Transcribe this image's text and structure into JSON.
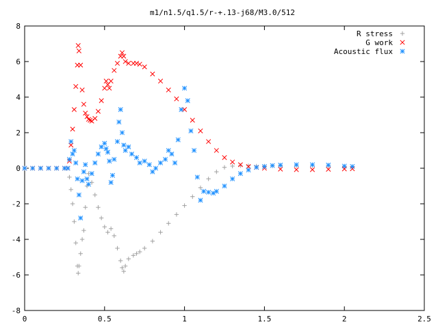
{
  "chart_data": {
    "type": "scatter",
    "title": "m1/n1.5/q1.5/r-+.13-j68/M3.0/512",
    "xlabel": "",
    "ylabel": "",
    "xlim": [
      0,
      2.5
    ],
    "ylim": [
      -8,
      8
    ],
    "x_ticks": [
      0,
      0.5,
      1,
      1.5,
      2,
      2.5
    ],
    "x_tick_labels": [
      "0",
      "0.5",
      "1",
      "1.5",
      "2",
      "2.5"
    ],
    "y_ticks": [
      -8,
      -6,
      -4,
      -2,
      0,
      2,
      4,
      6,
      8
    ],
    "y_tick_labels": [
      "-8",
      "-6",
      "-4",
      "-2",
      "0",
      "2",
      "4",
      "6",
      "8"
    ],
    "grid": false,
    "legend_position": "top-right",
    "series": [
      {
        "name": "R stress",
        "marker": "plus",
        "color": "#a0a0a0",
        "points": [
          [
            0.0,
            0.0
          ],
          [
            0.05,
            0.0
          ],
          [
            0.1,
            0.0
          ],
          [
            0.15,
            0.0
          ],
          [
            0.2,
            0.0
          ],
          [
            0.25,
            0.0
          ],
          [
            0.27,
            0.0
          ],
          [
            0.28,
            -0.5
          ],
          [
            0.29,
            -1.2
          ],
          [
            0.3,
            -2.0
          ],
          [
            0.31,
            -3.0
          ],
          [
            0.32,
            -4.2
          ],
          [
            0.33,
            -5.5
          ],
          [
            0.335,
            -5.9
          ],
          [
            0.34,
            -5.5
          ],
          [
            0.35,
            -4.8
          ],
          [
            0.36,
            -4.0
          ],
          [
            0.37,
            -3.5
          ],
          [
            0.38,
            -2.2
          ],
          [
            0.39,
            -1.0
          ],
          [
            0.4,
            -0.3
          ],
          [
            0.42,
            -0.8
          ],
          [
            0.44,
            -1.5
          ],
          [
            0.46,
            -2.2
          ],
          [
            0.48,
            -2.8
          ],
          [
            0.5,
            -3.3
          ],
          [
            0.52,
            -3.6
          ],
          [
            0.54,
            -3.4
          ],
          [
            0.56,
            -3.8
          ],
          [
            0.58,
            -4.5
          ],
          [
            0.6,
            -5.2
          ],
          [
            0.61,
            -5.6
          ],
          [
            0.62,
            -5.8
          ],
          [
            0.63,
            -5.5
          ],
          [
            0.65,
            -5.1
          ],
          [
            0.68,
            -4.9
          ],
          [
            0.7,
            -4.8
          ],
          [
            0.72,
            -4.7
          ],
          [
            0.75,
            -4.5
          ],
          [
            0.8,
            -4.1
          ],
          [
            0.85,
            -3.6
          ],
          [
            0.9,
            -3.1
          ],
          [
            0.95,
            -2.6
          ],
          [
            1.0,
            -2.1
          ],
          [
            1.05,
            -1.6
          ],
          [
            1.1,
            -1.1
          ],
          [
            1.15,
            -0.6
          ],
          [
            1.2,
            -0.2
          ],
          [
            1.25,
            0.05
          ],
          [
            1.3,
            0.12
          ],
          [
            1.35,
            0.15
          ],
          [
            1.4,
            0.14
          ],
          [
            1.45,
            0.12
          ],
          [
            1.5,
            0.12
          ],
          [
            1.55,
            0.13
          ],
          [
            1.6,
            0.14
          ],
          [
            1.7,
            0.14
          ],
          [
            1.8,
            0.14
          ],
          [
            1.9,
            0.12
          ],
          [
            2.0,
            0.1
          ],
          [
            2.05,
            0.08
          ]
        ]
      },
      {
        "name": "G work",
        "marker": "cross",
        "color": "#ff0000",
        "points": [
          [
            0.0,
            0.0
          ],
          [
            0.05,
            0.0
          ],
          [
            0.1,
            0.0
          ],
          [
            0.15,
            0.0
          ],
          [
            0.2,
            0.0
          ],
          [
            0.25,
            0.0
          ],
          [
            0.27,
            0.0
          ],
          [
            0.28,
            0.4
          ],
          [
            0.29,
            1.3
          ],
          [
            0.3,
            2.2
          ],
          [
            0.31,
            3.3
          ],
          [
            0.32,
            4.6
          ],
          [
            0.33,
            5.8
          ],
          [
            0.335,
            6.9
          ],
          [
            0.34,
            6.6
          ],
          [
            0.35,
            5.8
          ],
          [
            0.36,
            4.4
          ],
          [
            0.37,
            3.6
          ],
          [
            0.38,
            3.1
          ],
          [
            0.39,
            2.9
          ],
          [
            0.4,
            2.75
          ],
          [
            0.41,
            2.7
          ],
          [
            0.42,
            2.65
          ],
          [
            0.44,
            2.8
          ],
          [
            0.46,
            3.2
          ],
          [
            0.48,
            3.8
          ],
          [
            0.5,
            4.5
          ],
          [
            0.51,
            4.9
          ],
          [
            0.52,
            4.7
          ],
          [
            0.53,
            4.5
          ],
          [
            0.54,
            4.9
          ],
          [
            0.56,
            5.5
          ],
          [
            0.58,
            5.9
          ],
          [
            0.6,
            6.3
          ],
          [
            0.61,
            6.5
          ],
          [
            0.62,
            6.3
          ],
          [
            0.63,
            6.0
          ],
          [
            0.65,
            5.9
          ],
          [
            0.68,
            5.9
          ],
          [
            0.7,
            5.9
          ],
          [
            0.72,
            5.85
          ],
          [
            0.75,
            5.7
          ],
          [
            0.8,
            5.3
          ],
          [
            0.85,
            4.9
          ],
          [
            0.9,
            4.4
          ],
          [
            0.95,
            3.9
          ],
          [
            1.0,
            3.3
          ],
          [
            1.05,
            2.7
          ],
          [
            1.1,
            2.1
          ],
          [
            1.15,
            1.5
          ],
          [
            1.2,
            1.0
          ],
          [
            1.25,
            0.6
          ],
          [
            1.3,
            0.35
          ],
          [
            1.35,
            0.2
          ],
          [
            1.4,
            0.1
          ],
          [
            1.45,
            0.05
          ],
          [
            1.5,
            0.0
          ],
          [
            1.6,
            -0.05
          ],
          [
            1.7,
            -0.08
          ],
          [
            1.8,
            -0.08
          ],
          [
            1.9,
            -0.06
          ],
          [
            2.0,
            -0.04
          ],
          [
            2.05,
            -0.03
          ]
        ]
      },
      {
        "name": "Acoustic flux",
        "marker": "star",
        "color": "#1e90ff",
        "points": [
          [
            0.0,
            0.0
          ],
          [
            0.05,
            0.0
          ],
          [
            0.1,
            0.0
          ],
          [
            0.15,
            0.0
          ],
          [
            0.2,
            0.0
          ],
          [
            0.25,
            0.0
          ],
          [
            0.27,
            0.0
          ],
          [
            0.28,
            0.5
          ],
          [
            0.29,
            1.5
          ],
          [
            0.3,
            0.8
          ],
          [
            0.31,
            1.0
          ],
          [
            0.32,
            0.3
          ],
          [
            0.33,
            -0.6
          ],
          [
            0.34,
            -1.5
          ],
          [
            0.35,
            -2.8
          ],
          [
            0.36,
            -0.7
          ],
          [
            0.37,
            -0.2
          ],
          [
            0.38,
            0.2
          ],
          [
            0.39,
            -0.6
          ],
          [
            0.4,
            -0.9
          ],
          [
            0.42,
            -0.3
          ],
          [
            0.44,
            0.3
          ],
          [
            0.46,
            0.8
          ],
          [
            0.48,
            1.2
          ],
          [
            0.5,
            1.4
          ],
          [
            0.51,
            1.1
          ],
          [
            0.52,
            0.9
          ],
          [
            0.53,
            0.4
          ],
          [
            0.54,
            -0.8
          ],
          [
            0.55,
            -0.4
          ],
          [
            0.56,
            0.5
          ],
          [
            0.58,
            1.5
          ],
          [
            0.59,
            2.6
          ],
          [
            0.6,
            3.3
          ],
          [
            0.61,
            2.0
          ],
          [
            0.62,
            1.3
          ],
          [
            0.63,
            1.0
          ],
          [
            0.65,
            1.2
          ],
          [
            0.67,
            0.8
          ],
          [
            0.7,
            0.6
          ],
          [
            0.72,
            0.3
          ],
          [
            0.75,
            0.4
          ],
          [
            0.78,
            0.2
          ],
          [
            0.8,
            -0.2
          ],
          [
            0.82,
            0.0
          ],
          [
            0.85,
            0.3
          ],
          [
            0.88,
            0.5
          ],
          [
            0.9,
            1.0
          ],
          [
            0.92,
            0.8
          ],
          [
            0.94,
            0.3
          ],
          [
            0.96,
            1.6
          ],
          [
            0.98,
            3.3
          ],
          [
            1.0,
            4.5
          ],
          [
            1.02,
            3.8
          ],
          [
            1.04,
            2.1
          ],
          [
            1.06,
            1.0
          ],
          [
            1.08,
            -0.5
          ],
          [
            1.1,
            -1.8
          ],
          [
            1.12,
            -1.3
          ],
          [
            1.15,
            -1.35
          ],
          [
            1.18,
            -1.4
          ],
          [
            1.2,
            -1.3
          ],
          [
            1.25,
            -1.0
          ],
          [
            1.3,
            -0.6
          ],
          [
            1.35,
            -0.3
          ],
          [
            1.4,
            -0.1
          ],
          [
            1.45,
            0.05
          ],
          [
            1.5,
            0.1
          ],
          [
            1.55,
            0.15
          ],
          [
            1.6,
            0.18
          ],
          [
            1.7,
            0.2
          ],
          [
            1.8,
            0.2
          ],
          [
            1.9,
            0.18
          ],
          [
            2.0,
            0.12
          ],
          [
            2.05,
            0.1
          ]
        ]
      }
    ]
  }
}
